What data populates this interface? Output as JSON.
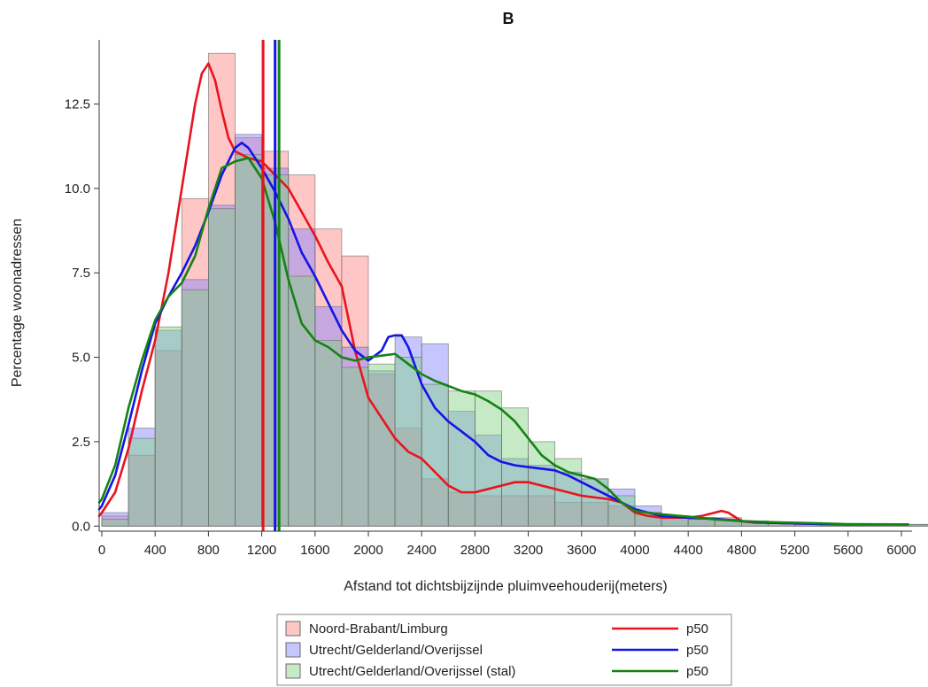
{
  "chart_data": {
    "type": "bar",
    "title": "B",
    "xlabel": "Afstand tot dichtsbijzijnde pluimveehouderij(meters)",
    "ylabel": "Percentage woonadressen",
    "xlim": [
      -20,
      6080
    ],
    "ylim": [
      -0.15,
      14.4
    ],
    "xticks": [
      0,
      400,
      800,
      1200,
      1600,
      2000,
      2400,
      2800,
      3200,
      3600,
      4000,
      4400,
      4800,
      5200,
      5600,
      6000
    ],
    "yticks": [
      0.0,
      2.5,
      5.0,
      7.5,
      10.0,
      12.5
    ],
    "ytick_labels": [
      "0.0",
      "2.5",
      "5.0",
      "7.5",
      "10.0",
      "12.5"
    ],
    "bin_width": 200,
    "bin_starts": [
      0,
      200,
      400,
      600,
      800,
      1000,
      1200,
      1400,
      1600,
      1800,
      2000,
      2200,
      2400,
      2600,
      2800,
      3000,
      3200,
      3400,
      3600,
      3800,
      4000,
      4200,
      4400,
      4600,
      4800,
      5000,
      5200,
      5400,
      5600,
      5800,
      6000
    ],
    "series": [
      {
        "name": "Noord-Brabant/Limburg",
        "color": "#ff8080",
        "values": [
          0.3,
          2.1,
          5.2,
          9.7,
          14.0,
          11.5,
          11.1,
          10.4,
          8.8,
          8.0,
          4.5,
          2.9,
          1.4,
          1.0,
          0.9,
          0.9,
          0.9,
          0.7,
          0.7,
          0.6,
          0.4,
          0.3,
          0.25,
          0.25,
          0.15,
          0.1,
          0.05,
          0.05,
          0.05,
          0.05,
          0.05
        ]
      },
      {
        "name": "Utrecht/Gelderland/Overijssel",
        "color": "#8080ff",
        "values": [
          0.4,
          2.9,
          5.8,
          7.3,
          9.5,
          11.6,
          10.6,
          8.8,
          6.5,
          5.3,
          4.6,
          5.6,
          5.4,
          3.4,
          2.7,
          2.0,
          1.8,
          1.6,
          1.4,
          1.1,
          0.6,
          0.3,
          0.2,
          0.2,
          0.1,
          0.1,
          0.05,
          0.05,
          0.05,
          0.05,
          0.05
        ]
      },
      {
        "name": "Utrecht/Gelderland/Overijssel (stal)",
        "color": "#80d080",
        "values": [
          0.2,
          2.6,
          5.9,
          7.0,
          9.4,
          11.0,
          10.4,
          7.4,
          5.5,
          4.7,
          4.8,
          5.0,
          4.2,
          4.0,
          4.0,
          3.5,
          2.5,
          2.0,
          1.4,
          0.9,
          0.4,
          0.3,
          0.2,
          0.2,
          0.15,
          0.1,
          0.05,
          0.05,
          0.05,
          0.05,
          0.05
        ]
      }
    ],
    "density": [
      {
        "name": "p50",
        "color": "#e8141e",
        "x": [
          -20,
          0,
          100,
          200,
          300,
          400,
          500,
          600,
          700,
          750,
          800,
          850,
          900,
          950,
          1000,
          1100,
          1200,
          1300,
          1400,
          1500,
          1600,
          1700,
          1800,
          1900,
          2000,
          2100,
          2200,
          2300,
          2400,
          2500,
          2600,
          2700,
          2800,
          2900,
          3000,
          3100,
          3200,
          3300,
          3400,
          3500,
          3600,
          3700,
          3800,
          3900,
          4000,
          4100,
          4200,
          4300,
          4400,
          4500,
          4600,
          4650,
          4700,
          4800,
          4900,
          5000,
          5200,
          5400,
          5600,
          5800,
          6050
        ],
        "y": [
          0.3,
          0.4,
          1.0,
          2.3,
          4.0,
          5.5,
          7.5,
          10.0,
          12.5,
          13.4,
          13.7,
          13.2,
          12.3,
          11.5,
          11.1,
          10.9,
          10.8,
          10.4,
          10.0,
          9.3,
          8.6,
          7.8,
          7.1,
          5.2,
          3.8,
          3.2,
          2.6,
          2.2,
          2.0,
          1.6,
          1.2,
          1.0,
          1.0,
          1.1,
          1.2,
          1.3,
          1.3,
          1.2,
          1.1,
          1.0,
          0.9,
          0.85,
          0.8,
          0.7,
          0.4,
          0.3,
          0.25,
          0.25,
          0.25,
          0.3,
          0.4,
          0.45,
          0.4,
          0.15,
          0.1,
          0.1,
          0.08,
          0.06,
          0.05,
          0.05,
          0.05
        ]
      },
      {
        "name": "p50",
        "color": "#1414e8",
        "x": [
          -20,
          0,
          100,
          200,
          300,
          400,
          500,
          600,
          700,
          800,
          900,
          1000,
          1050,
          1100,
          1200,
          1300,
          1400,
          1500,
          1600,
          1700,
          1800,
          1900,
          2000,
          2100,
          2150,
          2200,
          2250,
          2300,
          2400,
          2500,
          2600,
          2700,
          2800,
          2900,
          3000,
          3100,
          3200,
          3300,
          3400,
          3500,
          3600,
          3700,
          3800,
          3900,
          4000,
          4100,
          4200,
          4400,
          4600,
          4800,
          5000,
          5200,
          5400,
          5600,
          6050
        ],
        "y": [
          0.5,
          0.6,
          1.5,
          3.0,
          4.6,
          6.0,
          6.8,
          7.5,
          8.3,
          9.3,
          10.4,
          11.2,
          11.35,
          11.2,
          10.6,
          9.9,
          9.1,
          8.1,
          7.4,
          6.6,
          5.8,
          5.2,
          4.9,
          5.2,
          5.6,
          5.65,
          5.65,
          5.3,
          4.2,
          3.5,
          3.1,
          2.8,
          2.5,
          2.1,
          1.9,
          1.8,
          1.75,
          1.7,
          1.65,
          1.5,
          1.3,
          1.1,
          0.9,
          0.7,
          0.5,
          0.4,
          0.3,
          0.25,
          0.22,
          0.15,
          0.1,
          0.08,
          0.06,
          0.05,
          0.05
        ]
      },
      {
        "name": "p50",
        "color": "#148214",
        "x": [
          -20,
          0,
          100,
          200,
          300,
          400,
          500,
          600,
          700,
          800,
          900,
          1000,
          1100,
          1200,
          1300,
          1400,
          1500,
          1600,
          1700,
          1800,
          1900,
          2000,
          2100,
          2200,
          2300,
          2400,
          2500,
          2600,
          2700,
          2800,
          2900,
          3000,
          3100,
          3200,
          3300,
          3400,
          3500,
          3600,
          3700,
          3800,
          3900,
          4000,
          4200,
          4400,
          4600,
          4800,
          5000,
          5200,
          5400,
          5600,
          6050
        ],
        "y": [
          0.7,
          0.8,
          1.8,
          3.5,
          4.9,
          6.1,
          6.8,
          7.2,
          8.0,
          9.4,
          10.6,
          10.8,
          10.9,
          10.3,
          9.0,
          7.3,
          6.0,
          5.5,
          5.3,
          5.0,
          4.9,
          5.0,
          5.05,
          5.1,
          4.8,
          4.5,
          4.3,
          4.15,
          4.0,
          3.9,
          3.7,
          3.45,
          3.1,
          2.6,
          2.1,
          1.8,
          1.6,
          1.5,
          1.4,
          1.1,
          0.7,
          0.45,
          0.35,
          0.28,
          0.2,
          0.15,
          0.12,
          0.1,
          0.08,
          0.06,
          0.05
        ]
      }
    ],
    "reference_lines": [
      {
        "name": "p50",
        "x": 1210,
        "color": "#e8141e"
      },
      {
        "name": "p50",
        "x": 1300,
        "color": "#1414e8"
      },
      {
        "name": "p50",
        "x": 1330,
        "color": "#148214"
      }
    ],
    "legend": {
      "placement": "bottom",
      "entries": [
        {
          "label": "Noord-Brabant/Limburg",
          "kind": "bar",
          "color": "#ff8080",
          "line_label": "p50",
          "line_color": "#e8141e"
        },
        {
          "label": "Utrecht/Gelderland/Overijssel",
          "kind": "bar",
          "color": "#8080ff",
          "line_label": "p50",
          "line_color": "#1414e8"
        },
        {
          "label": "Utrecht/Gelderland/Overijssel (stal)",
          "kind": "bar",
          "color": "#80d080",
          "line_label": "p50",
          "line_color": "#148214"
        }
      ]
    },
    "grid": false
  }
}
